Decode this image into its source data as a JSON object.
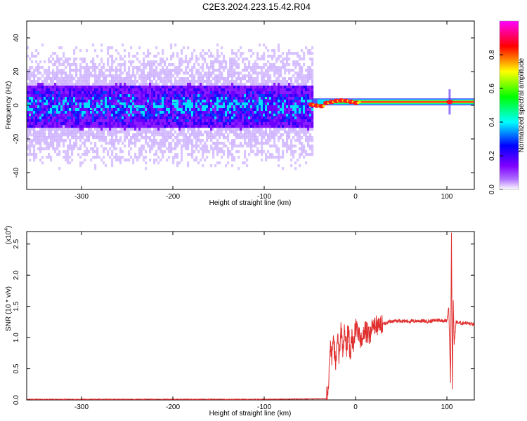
{
  "title": "C2E3.2024.223.15.42.R04",
  "chart_data": [
    {
      "type": "heatmap",
      "xlabel": "Height of straight line (km)",
      "ylabel": "Frequency (Hz)",
      "xlim": [
        -360,
        130
      ],
      "ylim": [
        -50,
        50
      ],
      "xticks": [
        -300,
        -200,
        -100,
        0,
        100
      ],
      "yticks": [
        -40,
        -20,
        0,
        20,
        40
      ],
      "grid": false,
      "colorbar": {
        "label": "Normalized spectral amplitude",
        "range": [
          0,
          1
        ],
        "ticks": [
          0.0,
          0.2,
          0.4,
          0.6,
          0.8
        ],
        "colors": [
          "#ffffff",
          "#7f00ff",
          "#0000ff",
          "#00ffff",
          "#00ff00",
          "#ffff00",
          "#ff0000",
          "#ff00ff"
        ]
      },
      "features": {
        "noise_region_x": [
          -360,
          -48
        ],
        "noise_band_y": [
          -12,
          12
        ],
        "signal_start_x": -48,
        "signal_frequency_hz": 2
      }
    },
    {
      "type": "line",
      "xlabel": "Height of straight line (km)",
      "ylabel": "SNR (10 * v/v)",
      "yscale_label": "(x10",
      "yscale_exp": "4",
      "xlim": [
        -360,
        130
      ],
      "ylim": [
        0,
        2.7
      ],
      "xticks": [
        -300,
        -200,
        -100,
        0,
        100
      ],
      "yticks": [
        0.0,
        0.5,
        1.0,
        1.5,
        2.0,
        2.5
      ],
      "series": [
        {
          "color": "#e03030",
          "x": [
            -360,
            -100,
            -32,
            -30,
            -28,
            -26,
            -24,
            -22,
            -20,
            -18,
            -16,
            -14,
            -12,
            -10,
            -8,
            -6,
            -4,
            -2,
            0,
            5,
            10,
            15,
            20,
            25,
            30,
            35,
            40,
            50,
            60,
            70,
            80,
            90,
            100,
            102,
            104,
            105,
            106,
            107,
            108,
            110,
            115,
            120,
            125,
            130
          ],
          "y": [
            0.01,
            0.01,
            0.02,
            0.15,
            0.85,
            0.65,
            0.95,
            0.6,
            1.05,
            0.7,
            1.2,
            0.75,
            1.1,
            0.8,
            1.15,
            0.75,
            1.0,
            0.85,
            1.2,
            0.95,
            1.1,
            1.05,
            1.2,
            1.18,
            1.22,
            1.25,
            1.26,
            1.27,
            1.26,
            1.27,
            1.26,
            1.28,
            1.27,
            1.5,
            0.3,
            2.7,
            0.15,
            1.6,
            0.9,
            1.25,
            1.23,
            1.24,
            1.22,
            1.21
          ]
        }
      ]
    }
  ]
}
